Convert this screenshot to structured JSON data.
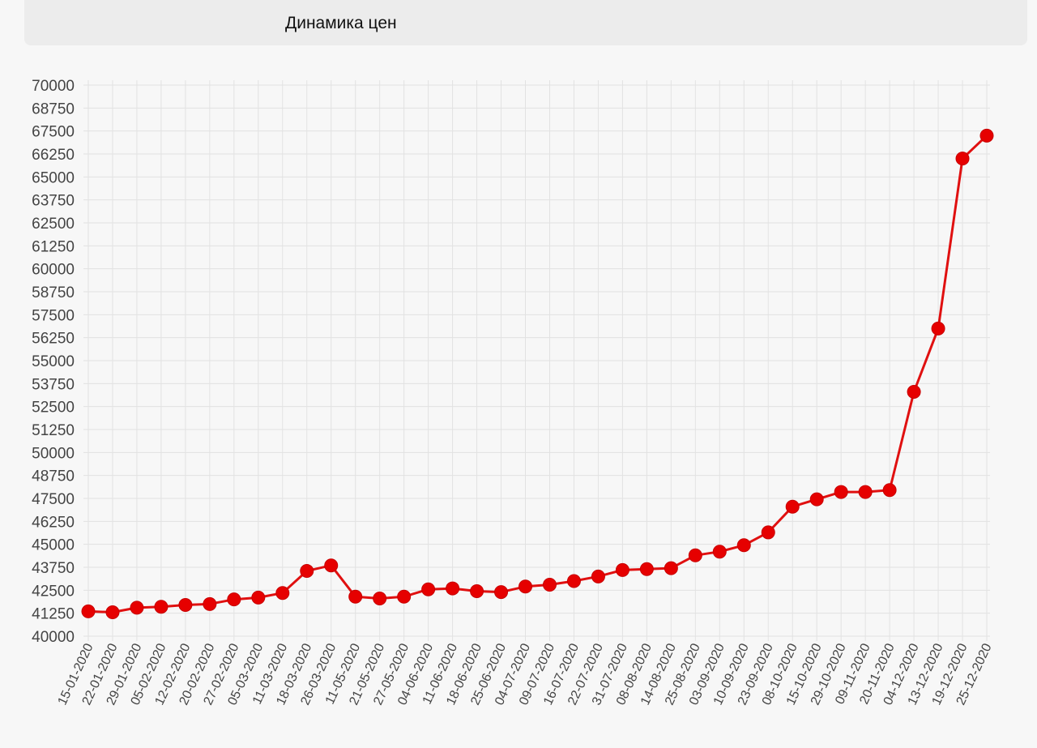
{
  "header": {
    "title": "Динамика цен"
  },
  "colors": {
    "series": "#e01010",
    "point_fill": "#e60000",
    "grid": "#e2e2e2"
  },
  "chart_data": {
    "type": "line",
    "title": "Динамика цен",
    "xlabel": "",
    "ylabel": "",
    "ylim": [
      40000,
      70000
    ],
    "yticks": [
      40000,
      41250,
      42500,
      43750,
      45000,
      46250,
      47500,
      48750,
      50000,
      51250,
      52500,
      53750,
      55000,
      56250,
      57500,
      58750,
      60000,
      61250,
      62500,
      63750,
      65000,
      66250,
      67500,
      68750,
      70000
    ],
    "grid": true,
    "legend": "none",
    "categories": [
      "15-01-2020",
      "22-01-2020",
      "29-01-2020",
      "05-02-2020",
      "12-02-2020",
      "20-02-2020",
      "27-02-2020",
      "05-03-2020",
      "11-03-2020",
      "18-03-2020",
      "26-03-2020",
      "11-05-2020",
      "21-05-2020",
      "27-05-2020",
      "04-06-2020",
      "11-06-2020",
      "18-06-2020",
      "25-06-2020",
      "04-07-2020",
      "09-07-2020",
      "16-07-2020",
      "22-07-2020",
      "31-07-2020",
      "08-08-2020",
      "14-08-2020",
      "25-08-2020",
      "03-09-2020",
      "10-09-2020",
      "23-09-2020",
      "08-10-2020",
      "15-10-2020",
      "29-10-2020",
      "09-11-2020",
      "20-11-2020",
      "04-12-2020",
      "13-12-2020",
      "19-12-2020",
      "25-12-2020"
    ],
    "series": [
      {
        "values": [
          41350,
          41300,
          41550,
          41600,
          41700,
          41750,
          42000,
          42100,
          42350,
          43550,
          43850,
          42150,
          42050,
          42150,
          42550,
          42600,
          42450,
          42400,
          42700,
          42800,
          43000,
          43250,
          43600,
          43650,
          43700,
          44400,
          44600,
          44950,
          45650,
          47050,
          47450,
          47850,
          47850,
          47950,
          53300,
          56750,
          66000,
          67250
        ]
      }
    ]
  }
}
